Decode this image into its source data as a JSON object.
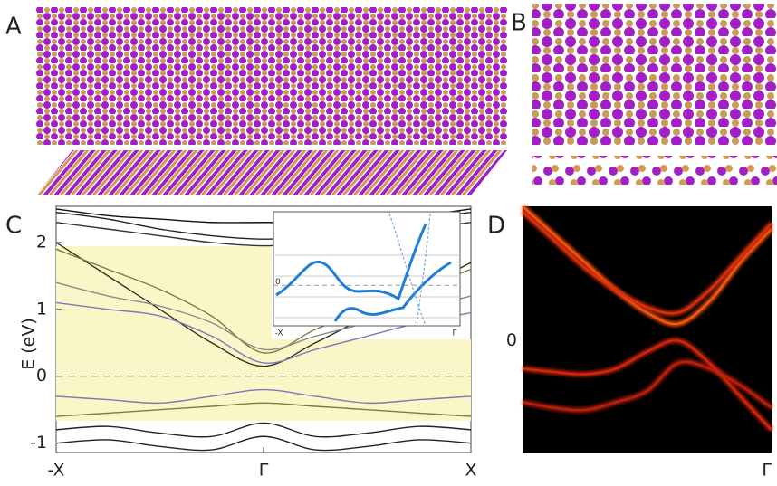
{
  "panels": {
    "a": "A",
    "b": "B",
    "c": "C",
    "d": "D"
  },
  "chart_data": [
    {
      "type": "line",
      "y_label": "E (eV)",
      "ylim": [
        -1.14,
        2.54
      ],
      "yticks": [
        -1,
        0,
        1,
        2
      ],
      "xlim": [
        -1,
        1
      ],
      "xticks": [
        {
          "value": -1,
          "label": "-X"
        },
        {
          "value": 0,
          "label": "Γ"
        },
        {
          "value": 1,
          "label": "X"
        }
      ],
      "fermi_level": 0,
      "x": [
        -1,
        -0.75,
        -0.5,
        -0.25,
        0,
        0.25,
        0.5,
        0.75,
        1
      ],
      "series": [
        {
          "color": "#222222",
          "values": [
            2.45,
            2.35,
            2.2,
            2.1,
            2.05,
            2.1,
            2.2,
            2.35,
            2.45
          ]
        },
        {
          "color": "#333333",
          "values": [
            2.3,
            2.2,
            2.1,
            2.0,
            1.95,
            2.0,
            2.1,
            2.2,
            2.3
          ]
        },
        {
          "color": "#111111",
          "values": [
            2.5,
            2.4,
            2.35,
            2.3,
            2.3,
            2.3,
            2.35,
            2.4,
            2.5
          ]
        },
        {
          "color": "#333322",
          "values": [
            2.0,
            1.5,
            1.0,
            0.5,
            0.15,
            0.5,
            0.9,
            1.3,
            1.7
          ]
        },
        {
          "color": "#7d7d3a",
          "values": [
            1.9,
            1.6,
            1.3,
            0.9,
            0.35,
            0.7,
            1.0,
            1.3,
            1.6
          ]
        },
        {
          "color": "#8a8a8a",
          "values": [
            1.4,
            1.2,
            1.05,
            0.8,
            0.4,
            0.6,
            0.8,
            1.0,
            1.2
          ]
        },
        {
          "color": "#7a7ab8",
          "values": [
            1.1,
            1.0,
            0.9,
            0.6,
            0.2,
            0.4,
            0.6,
            0.8,
            0.95
          ]
        },
        {
          "color": "#7a7ab8",
          "values": [
            -0.3,
            -0.35,
            -0.4,
            -0.3,
            -0.2,
            -0.3,
            -0.4,
            -0.35,
            -0.3
          ]
        },
        {
          "color": "#7d7d3a",
          "values": [
            -0.6,
            -0.55,
            -0.5,
            -0.45,
            -0.4,
            -0.45,
            -0.5,
            -0.55,
            -0.6
          ]
        },
        {
          "color": "#222222",
          "values": [
            -0.8,
            -0.75,
            -0.85,
            -0.9,
            -0.7,
            -0.9,
            -0.85,
            -0.75,
            -0.8
          ]
        },
        {
          "color": "#222222",
          "values": [
            -1.0,
            -0.95,
            -1.05,
            -1.1,
            -0.9,
            -1.1,
            -1.05,
            -0.95,
            -1.0
          ]
        }
      ],
      "inset": {
        "xlim": [
          -1,
          0
        ],
        "ylim": [
          -0.55,
          1
        ],
        "yticks": [
          0
        ],
        "xticks": [
          {
            "value": -1,
            "label": "-X"
          },
          {
            "value": 0,
            "label": "Γ"
          }
        ]
      }
    },
    {
      "type": "line",
      "ylim": [
        -1,
        1.2
      ],
      "yticks": [
        0
      ],
      "xlim": [
        0,
        1
      ],
      "xticks": [
        {
          "value": 1,
          "label": "Γ"
        }
      ],
      "x": [
        0,
        0.125,
        0.25,
        0.375,
        0.5,
        0.625,
        0.75,
        0.875,
        1
      ],
      "series": [
        {
          "color": "#ff5a10",
          "values": [
            1.2,
            0.95,
            0.7,
            0.45,
            0.25,
            0.15,
            0.35,
            0.7,
            1.0
          ]
        },
        {
          "color": "#e0300a",
          "values": [
            1.15,
            0.9,
            0.65,
            0.45,
            0.3,
            0.25,
            0.45,
            0.75,
            1.05
          ]
        },
        {
          "color": "#d8280a",
          "values": [
            -0.25,
            -0.28,
            -0.3,
            -0.25,
            -0.1,
            0.0,
            -0.2,
            -0.5,
            -0.8
          ]
        },
        {
          "color": "#c0200a",
          "values": [
            -0.55,
            -0.6,
            -0.62,
            -0.55,
            -0.45,
            -0.2,
            -0.25,
            -0.4,
            -0.6
          ]
        }
      ]
    }
  ]
}
